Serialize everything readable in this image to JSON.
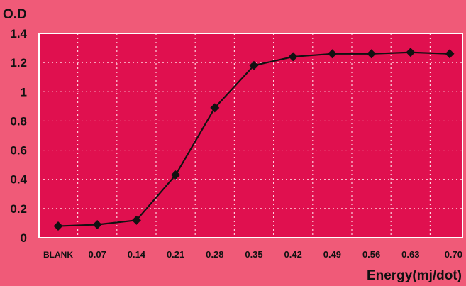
{
  "chart_data": {
    "type": "line",
    "title": "",
    "ylabel": "O.D",
    "xlabel": "Energy(mj/dot)",
    "categories": [
      "BLANK",
      "0.07",
      "0.14",
      "0.21",
      "0.28",
      "0.35",
      "0.42",
      "0.49",
      "0.56",
      "0.63",
      "0.70"
    ],
    "series": [
      {
        "values": [
          0.08,
          0.09,
          0.12,
          0.43,
          0.89,
          1.18,
          1.24,
          1.26,
          1.26,
          1.27,
          1.26
        ]
      }
    ],
    "ylim": [
      0,
      1.4
    ],
    "yticks": [
      "0",
      "0.2",
      "0.4",
      "0.6",
      "0.8",
      "1",
      "1.2",
      "1.4"
    ],
    "grid": true,
    "legend": "none",
    "marker": "diamond",
    "colors": {
      "page_background": "#f05a78",
      "plot_background": "#e0104f",
      "grid": "#ffd1dc",
      "plot_border": "#ffffff",
      "line": "#111111",
      "marker": "#111111"
    }
  }
}
